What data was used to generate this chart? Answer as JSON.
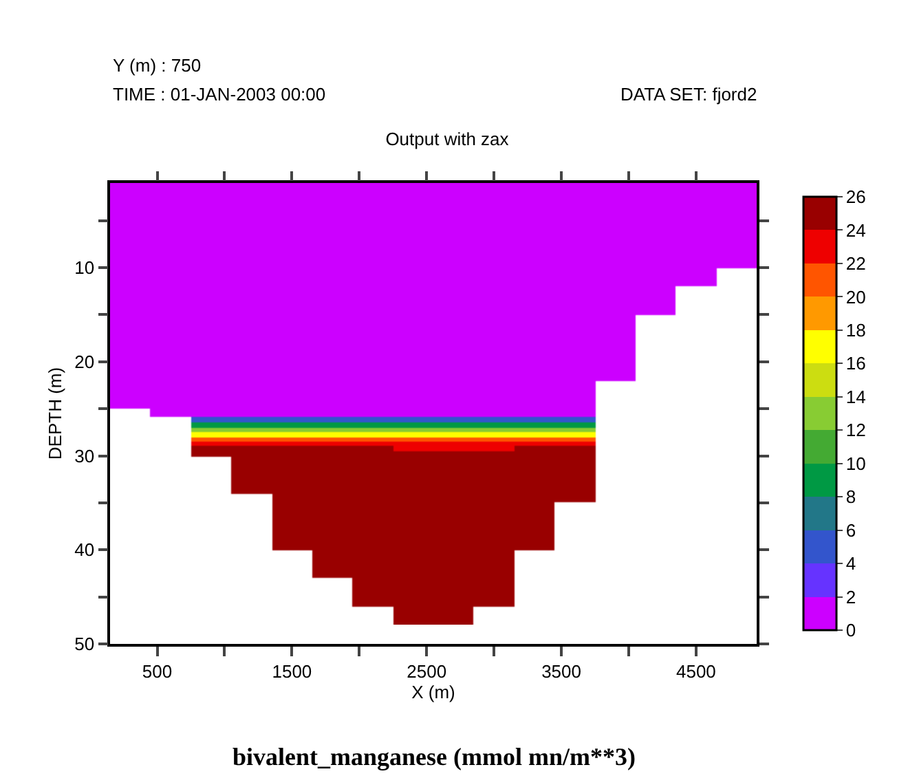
{
  "chart_data": {
    "type": "heatmap",
    "title": "Output with zax",
    "xlabel": "X (m)",
    "ylabel": "DEPTH (m)",
    "annotations": [
      "Y (m) : 750",
      "TIME : 01-JAN-2003 00:00",
      "DATA SET: fjord2",
      "bivalent_manganese (mmol mn/m**3)"
    ],
    "x": [
      300,
      600,
      900,
      1200,
      1500,
      1800,
      2100,
      2400,
      2700,
      3000,
      3300,
      3600,
      3900,
      4200,
      4500,
      4800
    ],
    "y": [
      1.5,
      2.5,
      3.5,
      4.5,
      5.5,
      6.5,
      7.5,
      8.5,
      9.5,
      10.5,
      11.5,
      12.5,
      13.5,
      14.5,
      15.5,
      16.5,
      17.5,
      18.5,
      19.5,
      20.5,
      21.5,
      22.5,
      23.5,
      24.5,
      25.5,
      26.25,
      26.75,
      27.25,
      27.75,
      28.25,
      28.75,
      29.25,
      29.75,
      30.5,
      31.5,
      32.5,
      33.5,
      34.5,
      35.5,
      36.5,
      37.5,
      38.5,
      39.5,
      40.5,
      41.5,
      42.5,
      43.5,
      44.5,
      45.5,
      46.5,
      47.5
    ],
    "cells": [
      [
        0,
        0,
        0,
        0,
        0,
        0,
        0,
        0,
        0,
        0,
        0,
        0,
        0,
        0,
        0,
        0
      ],
      [
        0,
        0,
        0,
        0,
        0,
        0,
        0,
        0,
        0,
        0,
        0,
        0,
        0,
        0,
        0,
        0
      ],
      [
        0,
        0,
        0,
        0,
        0,
        0,
        0,
        0,
        0,
        0,
        0,
        0,
        0,
        0,
        0,
        0
      ],
      [
        0,
        0,
        0,
        0,
        0,
        0,
        0,
        0,
        0,
        0,
        0,
        0,
        0,
        0,
        0,
        0
      ],
      [
        0,
        0,
        0,
        0,
        0,
        0,
        0,
        0,
        0,
        0,
        0,
        0,
        0,
        0,
        0,
        0
      ],
      [
        0,
        0,
        0,
        0,
        0,
        0,
        0,
        0,
        0,
        0,
        0,
        0,
        0,
        0,
        0,
        0
      ],
      [
        0,
        0,
        0,
        0,
        0,
        0,
        0,
        0,
        0,
        0,
        0,
        0,
        0,
        0,
        0,
        0
      ],
      [
        0,
        0,
        0,
        0,
        0,
        0,
        0,
        0,
        0,
        0,
        0,
        0,
        0,
        0,
        0,
        0
      ],
      [
        0,
        0,
        0,
        0,
        0,
        0,
        0,
        0,
        0,
        0,
        0,
        0,
        0,
        0,
        0,
        0
      ],
      [
        0,
        0,
        0,
        0,
        0,
        0,
        0,
        0,
        0,
        0,
        0,
        0,
        0,
        0,
        0,
        null
      ],
      [
        0,
        0,
        0,
        0,
        0,
        0,
        0,
        0,
        0,
        0,
        0,
        0,
        0,
        0,
        0,
        null
      ],
      [
        0,
        0,
        0,
        0,
        0,
        0,
        0,
        0,
        0,
        0,
        0,
        0,
        0,
        0,
        null,
        null
      ],
      [
        0,
        0,
        0,
        0,
        0,
        0,
        0,
        0,
        0,
        0,
        0,
        0,
        0,
        0,
        null,
        null
      ],
      [
        0,
        0,
        0,
        0,
        0,
        0,
        0,
        0,
        0,
        0,
        0,
        0,
        0,
        0,
        null,
        null
      ],
      [
        0,
        0,
        0,
        0,
        0,
        0,
        0,
        0,
        0,
        0,
        0,
        0,
        0,
        null,
        null,
        null
      ],
      [
        0,
        0,
        0,
        0,
        0,
        0,
        0,
        0,
        0,
        0,
        0,
        0,
        0,
        null,
        null,
        null
      ],
      [
        0,
        0,
        0,
        0,
        0,
        0,
        0,
        0,
        0,
        0,
        0,
        0,
        0,
        null,
        null,
        null
      ],
      [
        0,
        0,
        0,
        0,
        0,
        0,
        0,
        0,
        0,
        0,
        0,
        0,
        0,
        null,
        null,
        null
      ],
      [
        0,
        0,
        0,
        0,
        0,
        0,
        0,
        0,
        0,
        0,
        0,
        0,
        0,
        null,
        null,
        null
      ],
      [
        0,
        0,
        0,
        0,
        0,
        0,
        0,
        0,
        0,
        0,
        0,
        0,
        0,
        null,
        null,
        null
      ],
      [
        0,
        0,
        0,
        0,
        0,
        0,
        0,
        0,
        0,
        0,
        0,
        0,
        0,
        null,
        null,
        null
      ],
      [
        0,
        0,
        0,
        0,
        0,
        0,
        0,
        0,
        0,
        0,
        0,
        0,
        null,
        null,
        null,
        null
      ],
      [
        0,
        0,
        0,
        0,
        0,
        0,
        0,
        0,
        0,
        0,
        0,
        0,
        null,
        null,
        null,
        null
      ],
      [
        0,
        0,
        0,
        0,
        0,
        0,
        0,
        0,
        0,
        0,
        0,
        0,
        null,
        null,
        null,
        null
      ],
      [
        null,
        0,
        0,
        0,
        0,
        0,
        0,
        0,
        0,
        0,
        0,
        0,
        null,
        null,
        null,
        null
      ],
      [
        null,
        null,
        5,
        5,
        5,
        5,
        5,
        5,
        5,
        5,
        5,
        5,
        null,
        null,
        null,
        null
      ],
      [
        null,
        null,
        9,
        9,
        9,
        9,
        9,
        9,
        9,
        9,
        9,
        9,
        null,
        null,
        null,
        null
      ],
      [
        null,
        null,
        13,
        13,
        13,
        13,
        13,
        13,
        13,
        13,
        13,
        13,
        null,
        null,
        null,
        null
      ],
      [
        null,
        null,
        17,
        17,
        17,
        17,
        17,
        17,
        17,
        17,
        17,
        17,
        null,
        null,
        null,
        null
      ],
      [
        null,
        null,
        21,
        21,
        21,
        21,
        21,
        21,
        21,
        21,
        21,
        21,
        null,
        null,
        null,
        null
      ],
      [
        null,
        null,
        23,
        23,
        23,
        23,
        23,
        23,
        23,
        23,
        23,
        23,
        null,
        null,
        null,
        null
      ],
      [
        null,
        null,
        25,
        25,
        25,
        25,
        25,
        23,
        23,
        23,
        25,
        25,
        null,
        null,
        null,
        null
      ],
      [
        null,
        null,
        25,
        25,
        25,
        25,
        25,
        25,
        25,
        25,
        25,
        25,
        null,
        null,
        null,
        null
      ],
      [
        null,
        null,
        null,
        25,
        25,
        25,
        25,
        25,
        25,
        25,
        25,
        25,
        null,
        null,
        null,
        null
      ],
      [
        null,
        null,
        null,
        25,
        25,
        25,
        25,
        25,
        25,
        25,
        25,
        25,
        null,
        null,
        null,
        null
      ],
      [
        null,
        null,
        null,
        25,
        25,
        25,
        25,
        25,
        25,
        25,
        25,
        25,
        null,
        null,
        null,
        null
      ],
      [
        null,
        null,
        null,
        25,
        25,
        25,
        25,
        25,
        25,
        25,
        25,
        25,
        null,
        null,
        null,
        null
      ],
      [
        null,
        null,
        null,
        null,
        25,
        25,
        25,
        25,
        25,
        25,
        25,
        25,
        null,
        null,
        null,
        null
      ],
      [
        null,
        null,
        null,
        null,
        25,
        25,
        25,
        25,
        25,
        25,
        25,
        null,
        null,
        null,
        null,
        null
      ],
      [
        null,
        null,
        null,
        null,
        25,
        25,
        25,
        25,
        25,
        25,
        25,
        null,
        null,
        null,
        null,
        null
      ],
      [
        null,
        null,
        null,
        null,
        25,
        25,
        25,
        25,
        25,
        25,
        25,
        null,
        null,
        null,
        null,
        null
      ],
      [
        null,
        null,
        null,
        null,
        25,
        25,
        25,
        25,
        25,
        25,
        25,
        null,
        null,
        null,
        null,
        null
      ],
      [
        null,
        null,
        null,
        null,
        25,
        25,
        25,
        25,
        25,
        25,
        25,
        null,
        null,
        null,
        null,
        null
      ],
      [
        null,
        null,
        null,
        null,
        null,
        25,
        25,
        25,
        25,
        25,
        null,
        null,
        null,
        null,
        null,
        null
      ],
      [
        null,
        null,
        null,
        null,
        null,
        25,
        25,
        25,
        25,
        25,
        null,
        null,
        null,
        null,
        null,
        null
      ],
      [
        null,
        null,
        null,
        null,
        null,
        25,
        25,
        25,
        25,
        25,
        null,
        null,
        null,
        null,
        null,
        null
      ],
      [
        null,
        null,
        null,
        null,
        null,
        null,
        25,
        25,
        25,
        25,
        null,
        null,
        null,
        null,
        null,
        null
      ],
      [
        null,
        null,
        null,
        null,
        null,
        null,
        25,
        25,
        25,
        25,
        null,
        null,
        null,
        null,
        null,
        null
      ],
      [
        null,
        null,
        null,
        null,
        null,
        null,
        25,
        25,
        25,
        25,
        null,
        null,
        null,
        null,
        null,
        null
      ],
      [
        null,
        null,
        null,
        null,
        null,
        null,
        null,
        25,
        25,
        null,
        null,
        null,
        null,
        null,
        null,
        null
      ],
      [
        null,
        null,
        null,
        null,
        null,
        null,
        null,
        25,
        25,
        null,
        null,
        null,
        null,
        null,
        null,
        null
      ]
    ],
    "colors": [
      "#cc00ff",
      "#6633ff",
      "#3355cc",
      "#227788",
      "#009944",
      "#44aa33",
      "#88cc33",
      "#ccdd11",
      "#ffff00",
      "#ff9900",
      "#ff5500",
      "#ee0000",
      "#990000"
    ],
    "clim": [
      0,
      26
    ],
    "cticks": [
      0,
      2,
      4,
      6,
      8,
      10,
      12,
      14,
      16,
      18,
      20,
      22,
      24,
      26
    ],
    "xlim": [
      150,
      4950
    ],
    "xticks": [
      500,
      {
        "value": 1000,
        "label": null
      },
      1500,
      {
        "value": 2000,
        "label": null
      },
      2500,
      {
        "value": 3000,
        "label": null
      },
      3500,
      {
        "value": 4000,
        "label": null
      },
      4500
    ],
    "ylim": [
      50,
      1
    ],
    "yticks": [
      {
        "value": 5,
        "label": null
      },
      10,
      {
        "value": 15,
        "label": null
      },
      20,
      {
        "value": 25,
        "label": null
      },
      30,
      {
        "value": 35,
        "label": null
      },
      40,
      {
        "value": 45,
        "label": null
      },
      50
    ]
  }
}
